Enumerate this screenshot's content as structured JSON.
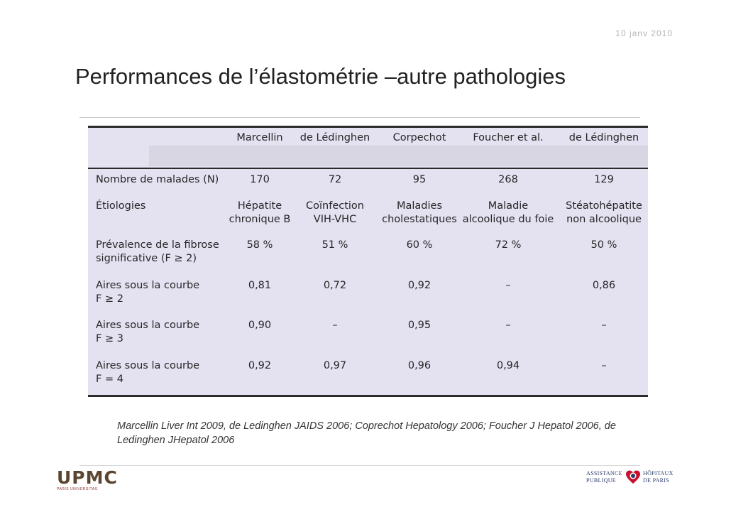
{
  "date": "10 janv 2010",
  "title": "Performances de l’élastométrie –autre pathologies",
  "table": {
    "columns": [
      "Marcellin",
      "de Lédinghen",
      "Corpechot",
      "Foucher et al.",
      "de Lédinghen"
    ],
    "rows": [
      {
        "label": [
          "Nombre de malades (N)"
        ],
        "values": [
          [
            "170"
          ],
          [
            "72"
          ],
          [
            "95"
          ],
          [
            "268"
          ],
          [
            "129"
          ]
        ]
      },
      {
        "label": [
          "Étiologies"
        ],
        "values": [
          [
            "Hépatite",
            "chronique B"
          ],
          [
            "Coïnfection",
            "VIH-VHC"
          ],
          [
            "Maladies",
            "cholestatiques"
          ],
          [
            "Maladie",
            "alcoolique du foie"
          ],
          [
            "Stéatohépatite",
            "non alcoolique"
          ]
        ]
      },
      {
        "label": [
          "Prévalence de la fibrose",
          "significative (F ≥ 2)"
        ],
        "values": [
          [
            "58 %"
          ],
          [
            "51 %"
          ],
          [
            "60 %"
          ],
          [
            "72 %"
          ],
          [
            "50 %"
          ]
        ]
      },
      {
        "label": [
          "Aires sous la courbe",
          "F ≥ 2"
        ],
        "values": [
          [
            "0,81"
          ],
          [
            "0,72"
          ],
          [
            "0,92"
          ],
          [
            "–"
          ],
          [
            "0,86"
          ]
        ]
      },
      {
        "label": [
          "Aires sous la courbe",
          "F ≥ 3"
        ],
        "values": [
          [
            "0,90"
          ],
          [
            "–"
          ],
          [
            "0,95"
          ],
          [
            "–"
          ],
          [
            "–"
          ]
        ]
      },
      {
        "label": [
          "Aires sous la courbe",
          "F = 4"
        ],
        "values": [
          [
            "0,92"
          ],
          [
            "0,97"
          ],
          [
            "0,96"
          ],
          [
            "0,94"
          ],
          [
            "–"
          ]
        ]
      }
    ]
  },
  "references": "Marcellin Liver Int 2009, de Ledinghen JAIDS 2006; Coprechot Hepatology 2006; Foucher J Hepatol 2006, de Ledinghen JHepatol 2006",
  "logos": {
    "upmc": "UPMC",
    "upmc_sub": "PARIS UNIVERSITAS",
    "aphp_left": [
      "ASSISTANCE",
      "PUBLIQUE"
    ],
    "aphp_right": [
      "HÔPITAUX",
      "DE PARIS"
    ]
  },
  "colors": {
    "table_bg": "#e4e1f1",
    "header_strip": "#d7d6e2",
    "rule": "#2b2b2b",
    "upmc_brown": "#5c4530",
    "aphp_red": "#c8102e"
  }
}
